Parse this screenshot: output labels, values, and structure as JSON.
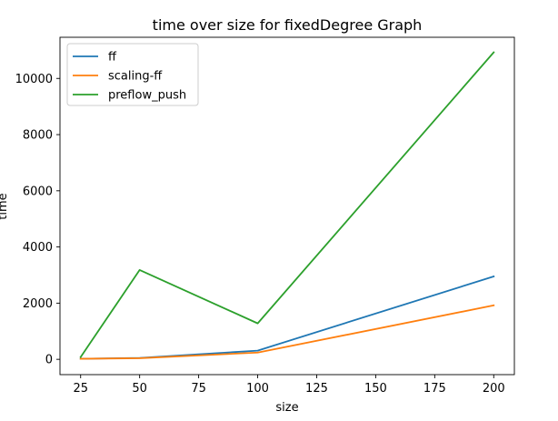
{
  "chart_data": {
    "type": "line",
    "title": "time over size for fixedDegree Graph",
    "xlabel": "size",
    "ylabel": "time",
    "x": [
      25,
      50,
      100,
      200
    ],
    "xlim": [
      16.25,
      208.75
    ],
    "ylim": [
      -545,
      11465
    ],
    "xticks": [
      25,
      50,
      75,
      100,
      125,
      150,
      175,
      200
    ],
    "yticks": [
      0,
      2000,
      4000,
      6000,
      8000,
      10000
    ],
    "grid": false,
    "legend_position": "top-left",
    "series": [
      {
        "name": "ff",
        "color": "#1f77b4",
        "values": [
          20,
          50,
          310,
          2950
        ]
      },
      {
        "name": "scaling-ff",
        "color": "#ff7f0e",
        "values": [
          20,
          40,
          240,
          1920
        ]
      },
      {
        "name": "preflow_push",
        "color": "#2ca02c",
        "values": [
          80,
          3180,
          1280,
          10930
        ]
      }
    ]
  }
}
